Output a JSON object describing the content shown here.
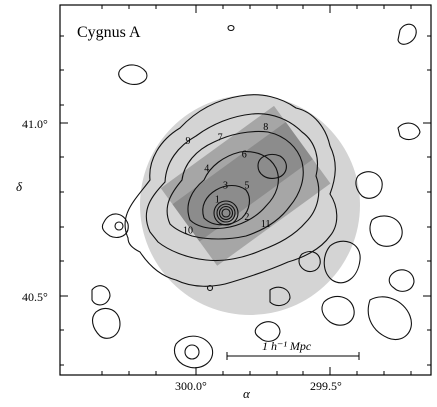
{
  "chart_data": {
    "type": "contour",
    "title": "Cygnus A",
    "xlabel": "α",
    "ylabel": "δ",
    "x_ticks": [
      "300.0°",
      "299.5°"
    ],
    "y_ticks": [
      "41.0°",
      "40.5°"
    ],
    "scale_bar_label": "1 h⁻¹ Mpc",
    "region_labels": [
      {
        "label": "1",
        "x": 299.92,
        "y": 40.77
      },
      {
        "label": "2",
        "x": 299.81,
        "y": 40.72
      },
      {
        "label": "3",
        "x": 299.89,
        "y": 40.81
      },
      {
        "label": "4",
        "x": 299.96,
        "y": 40.86
      },
      {
        "label": "5",
        "x": 299.81,
        "y": 40.81
      },
      {
        "label": "6",
        "x": 299.82,
        "y": 40.9
      },
      {
        "label": "7",
        "x": 299.91,
        "y": 40.95
      },
      {
        "label": "8",
        "x": 299.74,
        "y": 40.98
      },
      {
        "label": "9",
        "x": 300.03,
        "y": 40.94
      },
      {
        "label": "10",
        "x": 300.03,
        "y": 40.68
      },
      {
        "label": "11",
        "x": 299.74,
        "y": 40.7
      }
    ],
    "colors": {
      "circle": "#d4d4d4",
      "box": "#a8a8a8",
      "contour": "#111111"
    }
  }
}
